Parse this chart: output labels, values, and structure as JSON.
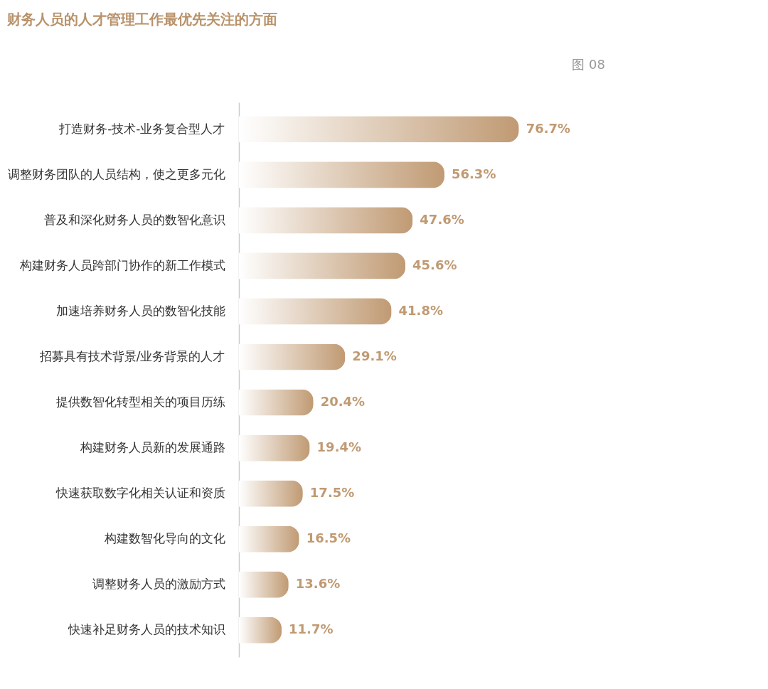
{
  "chart_data": {
    "type": "bar",
    "orientation": "horizontal",
    "title": "财务人员的人才管理工作最优先关注的方面",
    "annotations": [
      "图 08"
    ],
    "categories": [
      "打造财务-技术-业务复合型人才",
      "调整财务团队的人员结构，使之更多元化",
      "普及和深化财务人员的数智化意识",
      "构建财务人员跨部门协作的新工作模式",
      "加速培养财务人员的数智化技能",
      "招募具有技术背景/业务背景的人才",
      "提供数智化转型相关的项目历练",
      "构建财务人员新的发展通路",
      "快速获取数字化相关认证和资质",
      "构建数智化导向的文化",
      "调整财务人员的激励方式",
      "快速补足财务人员的技术知识"
    ],
    "values": [
      76.7,
      56.3,
      47.6,
      45.6,
      41.8,
      29.1,
      20.4,
      19.4,
      17.5,
      16.5,
      13.6,
      11.7
    ],
    "value_labels": [
      "76.7%",
      "56.3%",
      "47.6%",
      "45.6%",
      "41.8%",
      "29.1%",
      "20.4%",
      "19.4%",
      "17.5%",
      "16.5%",
      "13.6%",
      "11.7%"
    ],
    "color": "#c09a73"
  }
}
